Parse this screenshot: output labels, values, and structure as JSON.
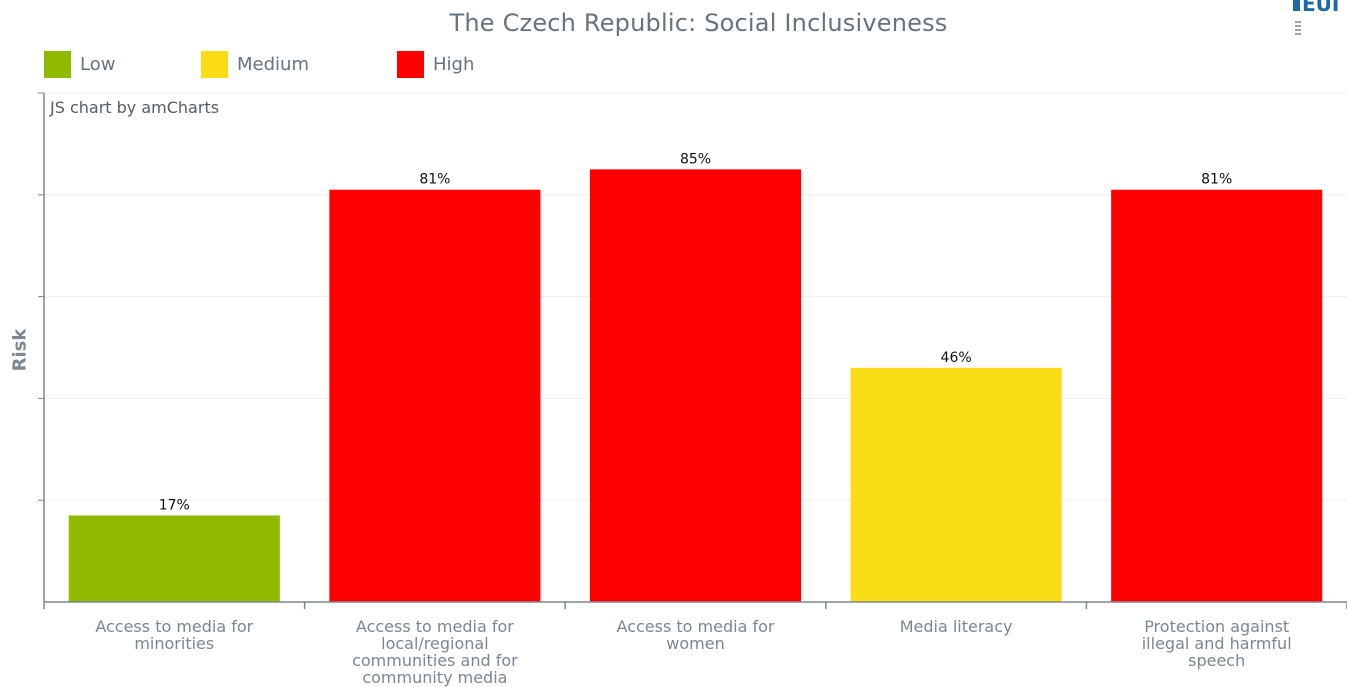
{
  "chart_data": {
    "type": "bar",
    "title": "The Czech Republic: Social Inclusiveness",
    "ylabel": "Risk",
    "xlabel": "",
    "ylim": [
      0,
      100
    ],
    "grid": true,
    "credit": "JS chart by amCharts",
    "legend": [
      {
        "label": "Low",
        "color": "#8fba00"
      },
      {
        "label": "Medium",
        "color": "#fadd17"
      },
      {
        "label": "High",
        "color": "#ff0000"
      }
    ],
    "categories": [
      "Access to media for minorities",
      "Access to media for local/regional communities and for community media",
      "Access to media for women",
      "Media literacy",
      "Protection against illegal and harmful speech"
    ],
    "values": [
      17,
      81,
      85,
      46,
      81
    ],
    "value_labels": [
      "17%",
      "81%",
      "85%",
      "46%",
      "81%"
    ],
    "risk_levels": [
      "Low",
      "High",
      "High",
      "Medium",
      "High"
    ]
  }
}
